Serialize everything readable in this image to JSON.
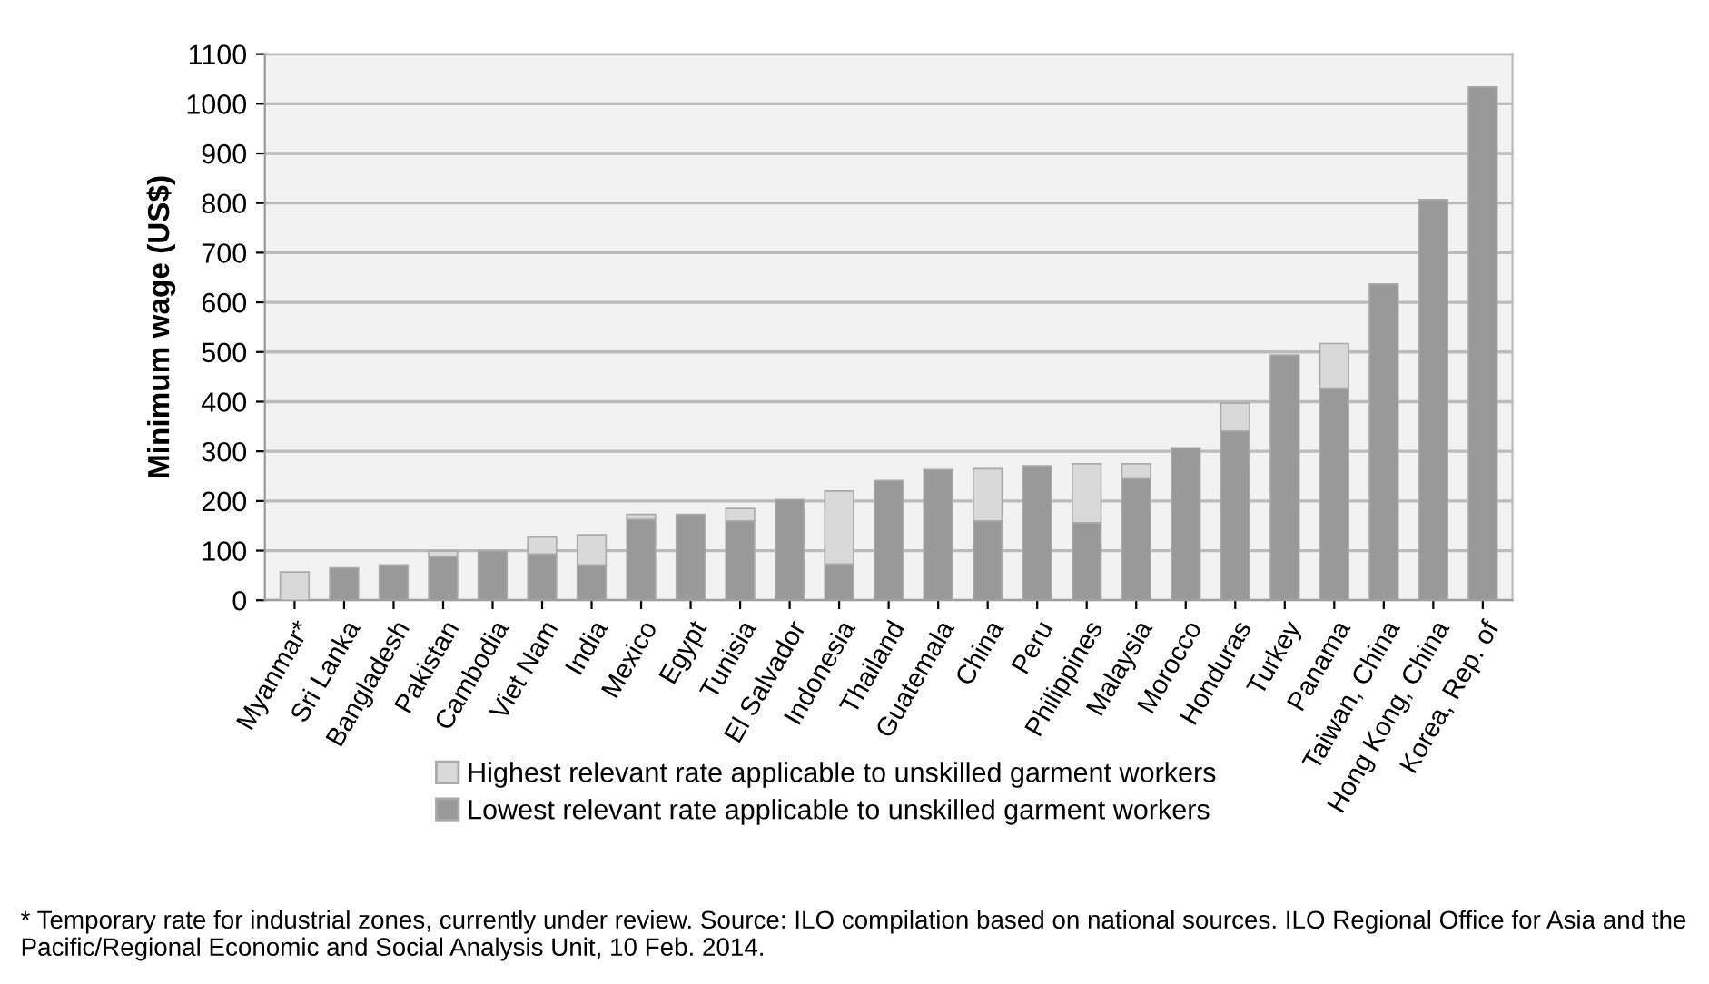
{
  "chart_data": {
    "type": "bar",
    "stacked": true,
    "ylabel": "Minimum wage (US$)",
    "categories": [
      "Myanmar*",
      "Sri Lanka",
      "Bangladesh",
      "Pakistan",
      "Cambodia",
      "Viet Nam",
      "India",
      "Mexico",
      "Egypt",
      "Tunisia",
      "El Salvador",
      "Indonesia",
      "Thailand",
      "Guatemala",
      "China",
      "Peru",
      "Philippines",
      "Malaysia",
      "Morocco",
      "Honduras",
      "Turkey",
      "Panama",
      "Taiwan, China",
      "Hong Kong, China",
      "Korea, Rep. of"
    ],
    "series": [
      {
        "name": "Lowest relevant rate applicable to unskilled garment workers",
        "color": "#999999",
        "values": [
          null,
          65,
          71,
          88,
          100,
          93,
          71,
          163,
          173,
          160,
          203,
          73,
          241,
          263,
          160,
          271,
          156,
          245,
          307,
          341,
          494,
          427,
          637,
          807,
          1034
        ]
      },
      {
        "name": "Highest relevant rate applicable to unskilled garment workers",
        "color": "#d9d9d9",
        "values": [
          57,
          null,
          null,
          11,
          null,
          34,
          61,
          10,
          null,
          25,
          null,
          147,
          null,
          null,
          105,
          null,
          119,
          30,
          null,
          56,
          null,
          90,
          null,
          null,
          null
        ]
      }
    ],
    "ylim": [
      0,
      1100
    ],
    "yticks": [
      0,
      100,
      200,
      300,
      400,
      500,
      600,
      700,
      800,
      900,
      1000,
      1100
    ],
    "grid": "y",
    "legend": "bottom",
    "annotations": [
      "* Temporary rate for industrial zones, currently under review. Source: ILO compilation based on national sources. ILO Regional Office for Asia and the Pacific/Regional Economic and Social Analysis Unit, 10 Feb. 2014."
    ]
  }
}
